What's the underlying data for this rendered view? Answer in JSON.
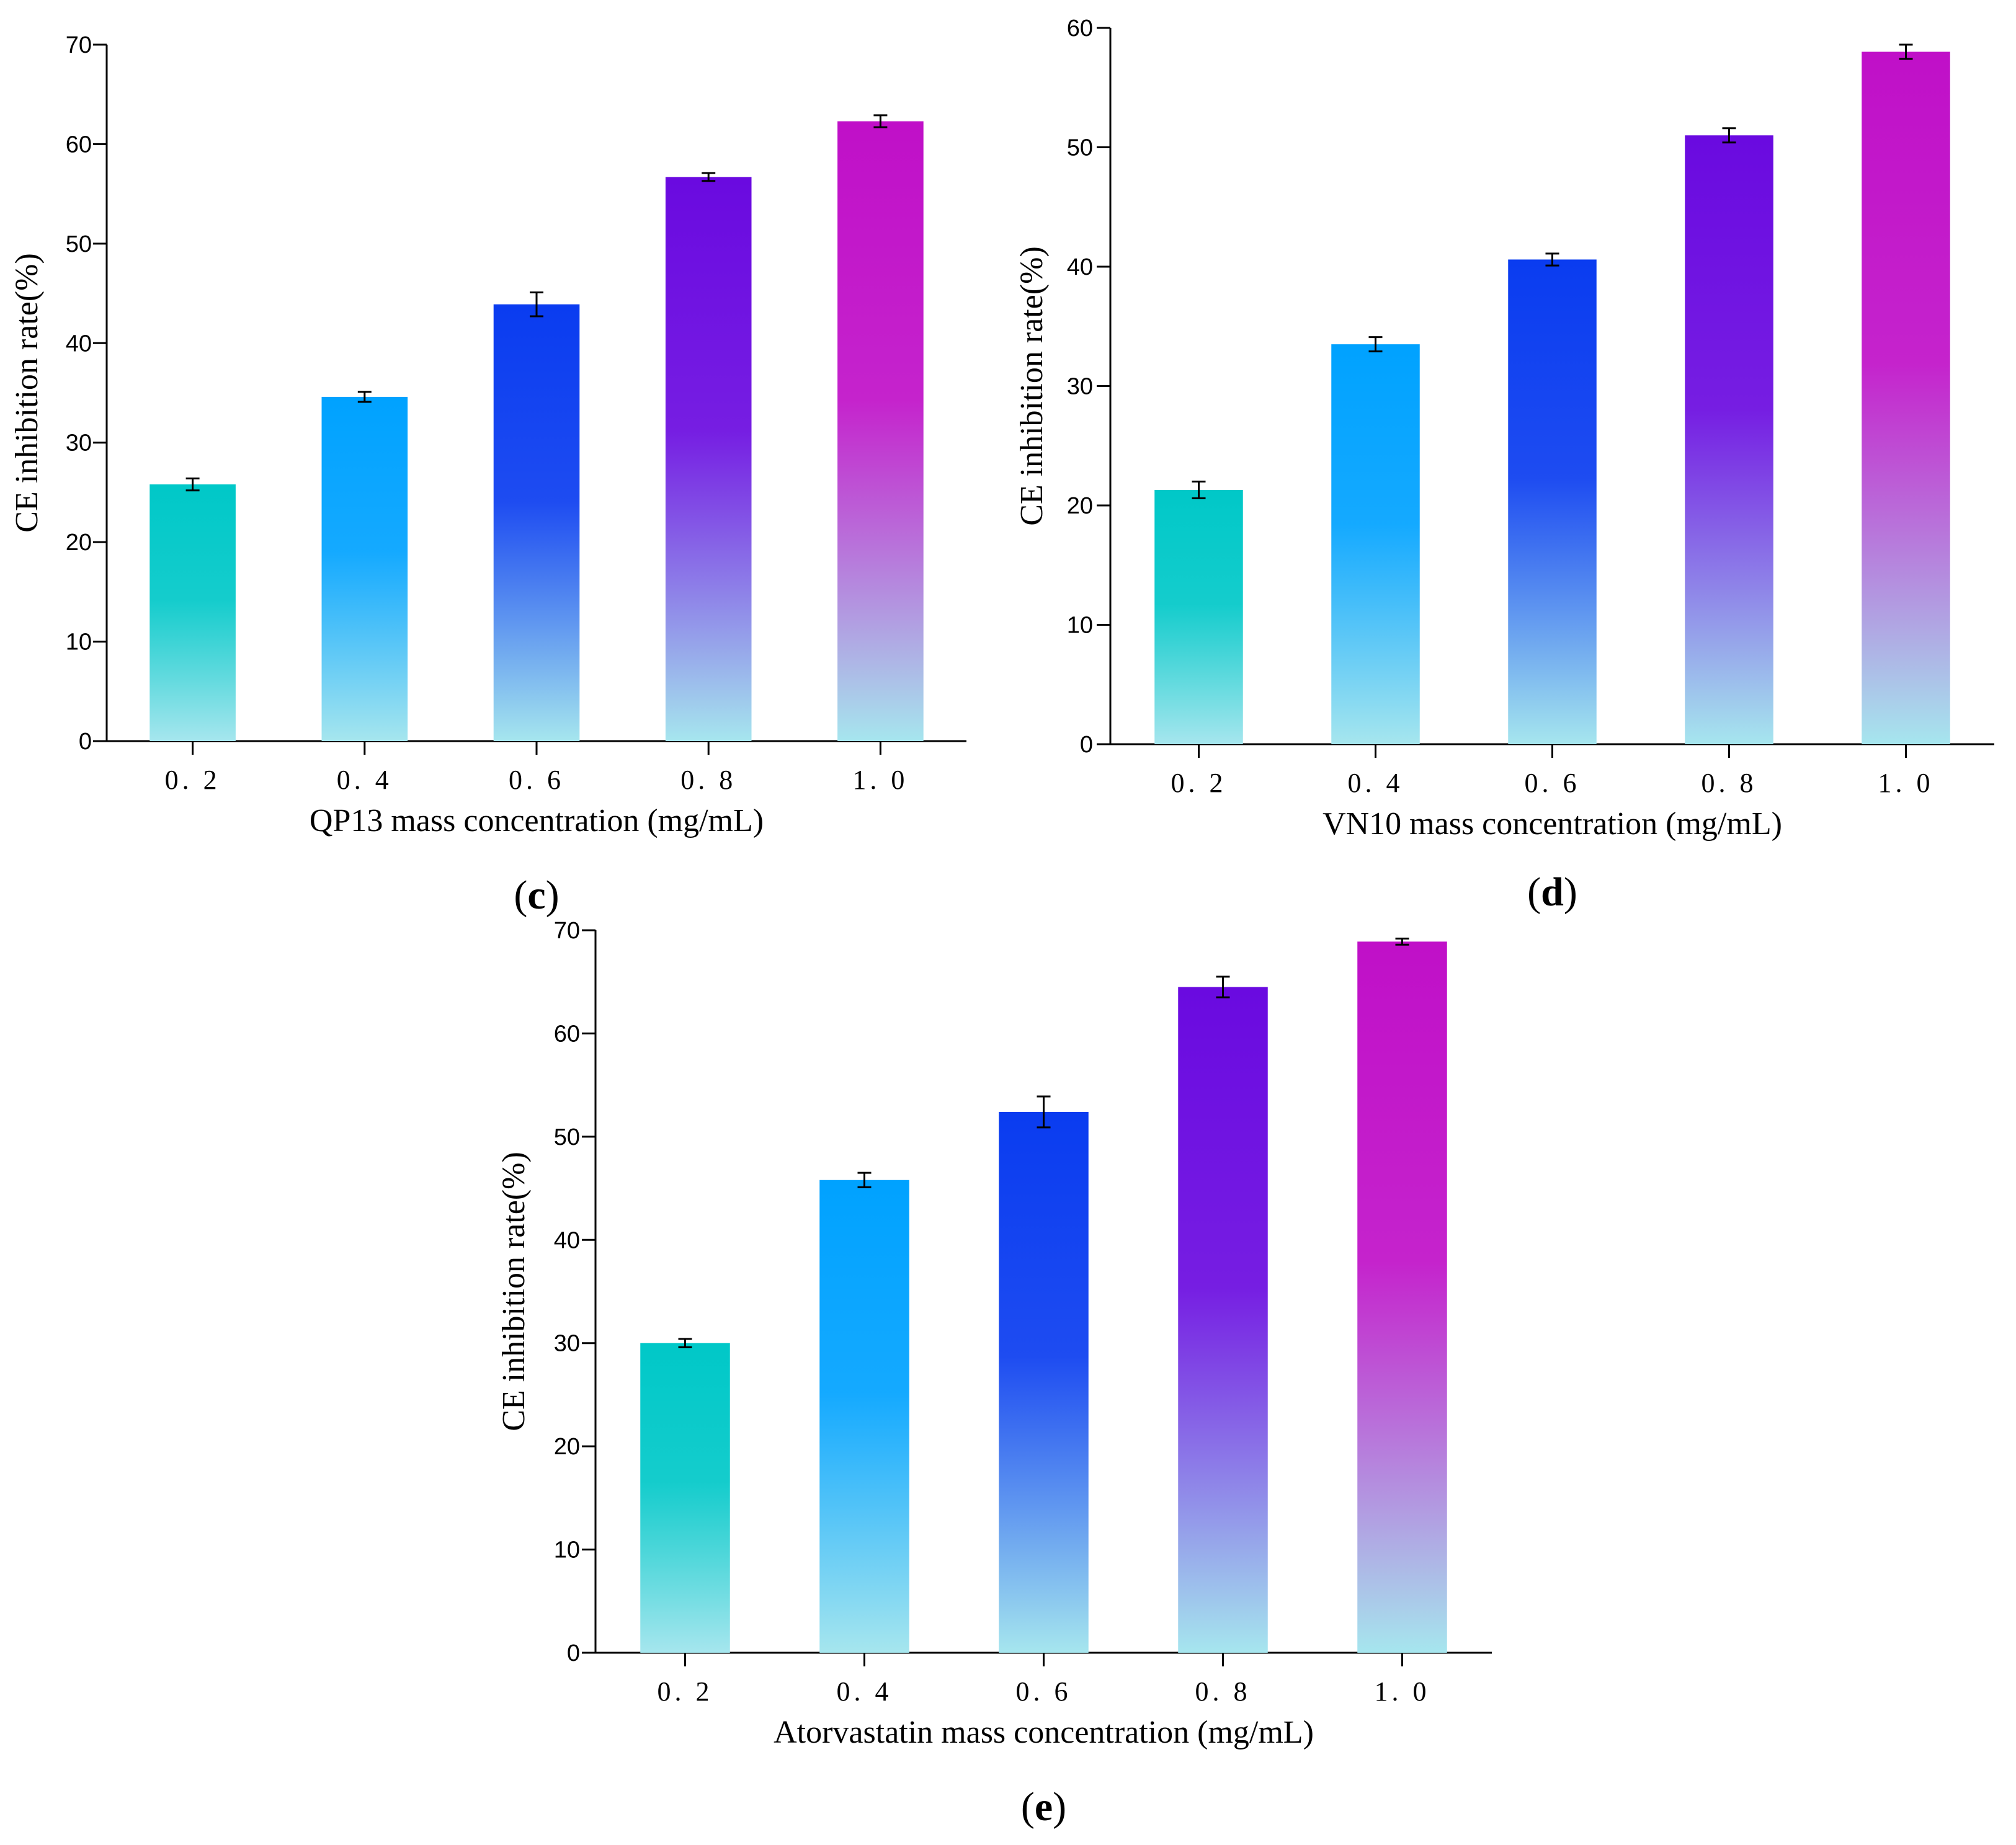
{
  "colors": {
    "bar_top": [
      "#00c8c8",
      "#00a2ff",
      "#0a3cf0",
      "#6a0ae0",
      "#c010c8"
    ],
    "bar_bottom": "#a6e6ee"
  },
  "chart_data": [
    {
      "id": "c",
      "type": "bar",
      "title": "",
      "panel_label": {
        "open": "(",
        "letter": "c",
        "close": ")"
      },
      "categories": [
        "0. 2",
        "0. 4",
        "0. 6",
        "0. 8",
        "1. 0"
      ],
      "values": [
        25.8,
        34.6,
        43.9,
        56.7,
        62.3
      ],
      "errors": [
        0.6,
        0.5,
        1.2,
        0.4,
        0.6
      ],
      "xlabel": "QP13 mass concentration (mg/mL)",
      "ylabel": "CE inhibition rate(%)",
      "ylim": [
        0,
        70
      ],
      "yticks": [
        0,
        10,
        20,
        30,
        40,
        50,
        60,
        70
      ],
      "grid": false
    },
    {
      "id": "d",
      "type": "bar",
      "title": "",
      "panel_label": {
        "open": "(",
        "letter": "d",
        "close": ")"
      },
      "categories": [
        "0. 2",
        "0. 4",
        "0. 6",
        "0. 8",
        "1. 0"
      ],
      "values": [
        21.3,
        33.5,
        40.6,
        51.0,
        58.0
      ],
      "errors": [
        0.7,
        0.6,
        0.5,
        0.6,
        0.6
      ],
      "xlabel": "VN10 mass concentration (mg/mL)",
      "ylabel": "CE inhibition rate(%)",
      "ylim": [
        0,
        60
      ],
      "yticks": [
        0,
        10,
        20,
        30,
        40,
        50,
        60
      ],
      "grid": false
    },
    {
      "id": "e",
      "type": "bar",
      "title": "",
      "panel_label": {
        "open": "(",
        "letter": "e",
        "close": ")"
      },
      "categories": [
        "0. 2",
        "0. 4",
        "0. 6",
        "0. 8",
        "1. 0"
      ],
      "values": [
        30.0,
        45.8,
        52.4,
        64.5,
        68.9
      ],
      "errors": [
        0.4,
        0.7,
        1.5,
        1.0,
        0.3
      ],
      "xlabel": "Atorvastatin mass concentration (mg/mL)",
      "ylabel": "CE inhibition rate(%)",
      "ylim": [
        0,
        70
      ],
      "yticks": [
        0,
        10,
        20,
        30,
        40,
        50,
        60,
        70
      ],
      "grid": false
    }
  ]
}
